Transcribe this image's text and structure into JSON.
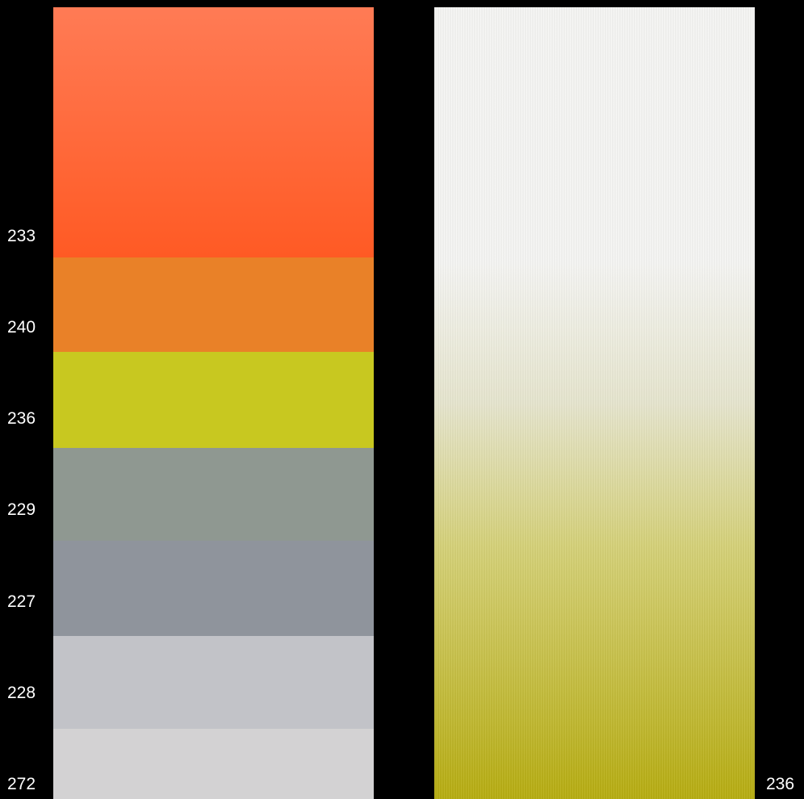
{
  "left_card": {
    "bands": [
      {
        "code": "233",
        "color": "#ff5a24",
        "color_top": "#ff7b55"
      },
      {
        "code": "240",
        "color": "#e98128"
      },
      {
        "code": "236",
        "color": "#c8c820"
      },
      {
        "code": "229",
        "color": "#8f9891"
      },
      {
        "code": "227",
        "color": "#8f949c"
      },
      {
        "code": "228",
        "color": "#c2c3c8"
      },
      {
        "code": "272",
        "color": "#d3d2d3"
      }
    ]
  },
  "right_card": {
    "code": "236",
    "gradient_from": "#f6f6f4",
    "gradient_to": "#b8ae12"
  }
}
